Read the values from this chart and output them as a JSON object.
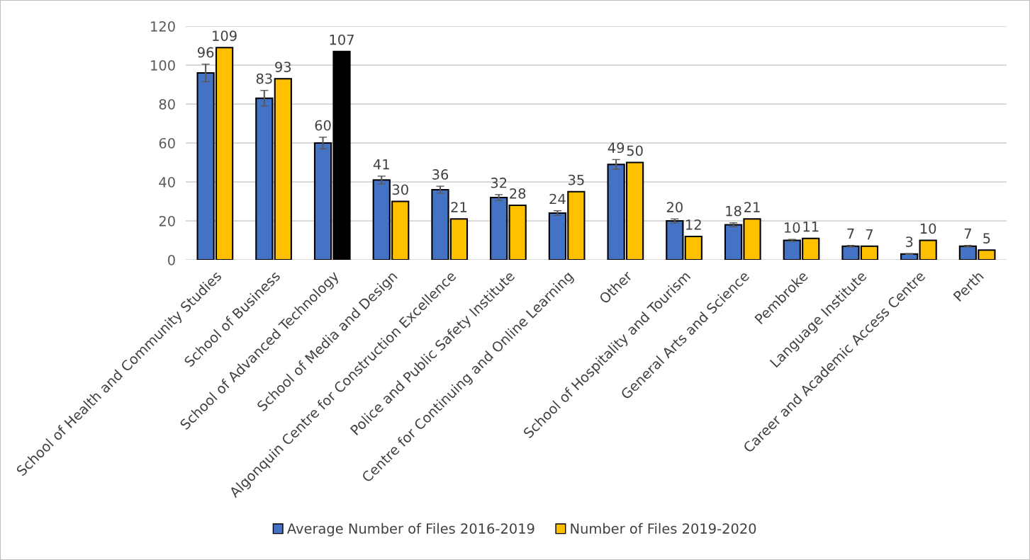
{
  "chart_data": {
    "type": "bar",
    "categories": [
      "School of Health and Community Studies",
      "School of Business",
      "School of Advanced Technology",
      "School of Media and Design",
      "Algonquin Centre for Construction Excellence",
      "Police and Public Safety Institute",
      "Centre for Continuing and Online Learning",
      "Other",
      "School of Hospitality and Tourism",
      "General Arts and Science",
      "Pembroke",
      "Language Institute",
      "Career and Academic Access Centre",
      "Perth"
    ],
    "series": [
      {
        "name": "Average Number of Files 2016-2019",
        "color": "#4472c4",
        "values": [
          96,
          83,
          60,
          41,
          36,
          32,
          24,
          49,
          20,
          18,
          10,
          7,
          3,
          7
        ],
        "errors": [
          4.5,
          4,
          3,
          2,
          1.8,
          1.5,
          1.2,
          2.5,
          1,
          1,
          0.5,
          0.4,
          0.2,
          0.4
        ]
      },
      {
        "name": "Number of Files 2019-2020",
        "color": "#ffc000",
        "colors": [
          "#ffc000",
          "#ffc000",
          "#000000",
          "#ffc000",
          "#ffc000",
          "#ffc000",
          "#ffc000",
          "#ffc000",
          "#ffc000",
          "#ffc000",
          "#ffc000",
          "#ffc000",
          "#ffc000",
          "#ffc000"
        ],
        "values": [
          109,
          93,
          107,
          30,
          21,
          28,
          35,
          50,
          12,
          21,
          11,
          7,
          10,
          5
        ]
      }
    ],
    "ylim": [
      0,
      120
    ],
    "yticks": [
      0,
      20,
      40,
      60,
      80,
      100,
      120
    ],
    "grid": "y",
    "legend": "bottom",
    "data_labels": true
  }
}
